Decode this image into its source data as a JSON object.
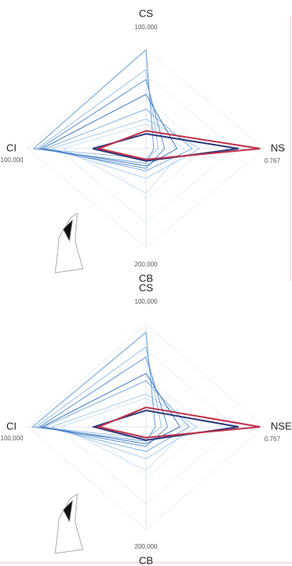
{
  "chart_data": [
    {
      "type": "radar",
      "grid": true,
      "axes": [
        {
          "label": "CS",
          "max": {
            "value": 100000,
            "label": "100,000"
          }
        },
        {
          "label": "NS",
          "max": 0.767
        },
        {
          "label": "CB",
          "max": {
            "value": 200000,
            "label": "200,000"
          }
        },
        {
          "label": "CI",
          "max": {
            "value": 100000,
            "label": "100,000"
          }
        }
      ],
      "series": [
        {
          "color": "#cfe3f6",
          "values": [
            25000,
            0.25,
            90000,
            70000
          ]
        },
        {
          "color": "#a9cdef",
          "values": [
            30000,
            0.35,
            60000,
            80000
          ]
        },
        {
          "color": "#7fb0e0",
          "values": [
            40000,
            0.3,
            45000,
            85000
          ]
        },
        {
          "color": "#9ac0e8",
          "values": [
            80000,
            0.08,
            20000,
            92000
          ]
        },
        {
          "color": "#6a9fd4",
          "values": [
            100000,
            0.05,
            30000,
            95000
          ]
        },
        {
          "color": "#5b8fd0",
          "values": [
            70000,
            0.12,
            40000,
            90000
          ]
        },
        {
          "color": "#3f78c2",
          "values": [
            55000,
            0.2,
            35000,
            88000
          ]
        },
        {
          "color": "#2b3a7a",
          "values": [
            15000,
            0.6,
            25000,
            45000
          ]
        },
        {
          "color": "#c0304a",
          "values": [
            18000,
            0.74,
            22000,
            40000
          ]
        }
      ]
    },
    {
      "type": "radar",
      "grid": true,
      "axes": [
        {
          "label": "CS",
          "max": {
            "value": 100000,
            "label": "100,000"
          }
        },
        {
          "label": "NSE",
          "max": 0.767
        },
        {
          "label": "CB",
          "max": {
            "value": 200000,
            "label": "200,000"
          }
        },
        {
          "label": "CI",
          "max": {
            "value": 100000,
            "label": "100,000"
          }
        }
      ],
      "series": [
        {
          "color": "#cfe3f6",
          "values": [
            28000,
            0.28,
            85000,
            72000
          ]
        },
        {
          "color": "#a9cdef",
          "values": [
            32000,
            0.33,
            62000,
            80000
          ]
        },
        {
          "color": "#7fb0e0",
          "values": [
            45000,
            0.28,
            48000,
            86000
          ]
        },
        {
          "color": "#9ac0e8",
          "values": [
            78000,
            0.1,
            22000,
            93000
          ]
        },
        {
          "color": "#6a9fd4",
          "values": [
            92000,
            0.06,
            28000,
            96000
          ]
        },
        {
          "color": "#5b8fd0",
          "values": [
            68000,
            0.14,
            38000,
            90000
          ]
        },
        {
          "color": "#3f78c2",
          "values": [
            52000,
            0.22,
            33000,
            88000
          ]
        },
        {
          "color": "#2b3a7a",
          "values": [
            16000,
            0.6,
            26000,
            44000
          ]
        },
        {
          "color": "#c0304a",
          "values": [
            19000,
            0.74,
            21000,
            40000
          ]
        }
      ]
    }
  ]
}
